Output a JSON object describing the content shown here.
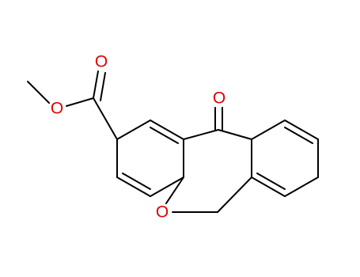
{
  "atoms": [
    {
      "label": "O"
    },
    {
      "label": "O"
    },
    {
      "label": "O"
    },
    {
      "label": "O"
    }
  ]
}
